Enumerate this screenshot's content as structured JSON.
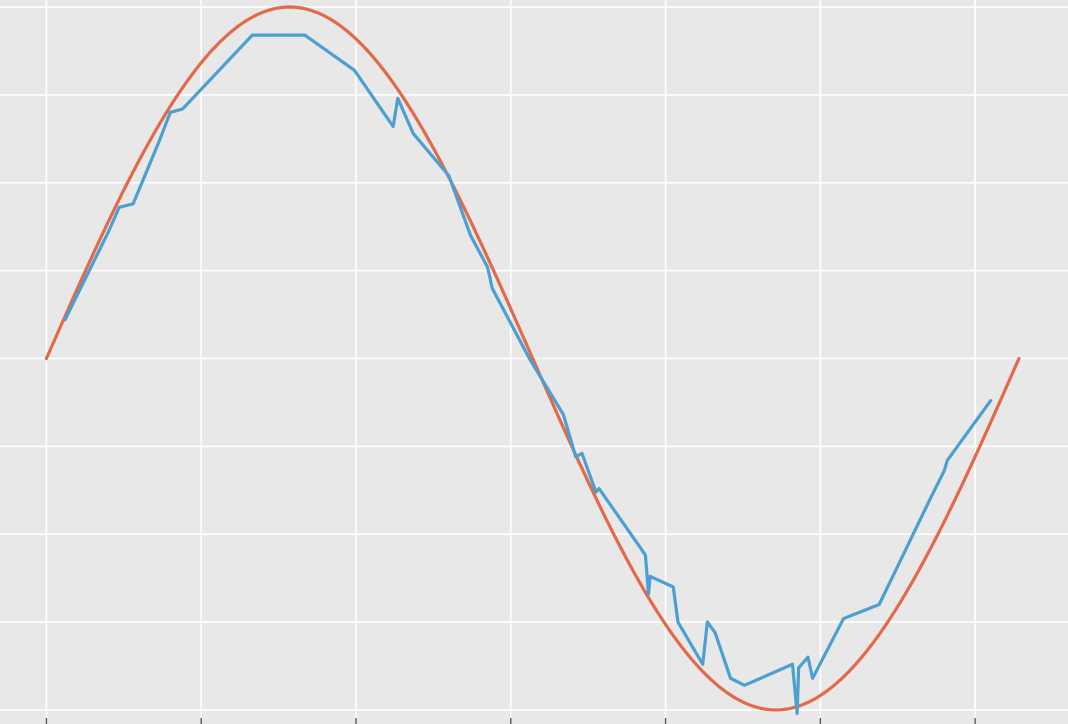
{
  "chart_data": {
    "type": "line",
    "title": "",
    "xlabel": "",
    "ylabel": "",
    "xlim": [
      -0.3,
      6.6
    ],
    "ylim": [
      -1.04,
      1.02
    ],
    "x_ticks": [
      0,
      1,
      2,
      3,
      4,
      5,
      6
    ],
    "y_ticks": [
      -1.0,
      -0.75,
      -0.5,
      -0.25,
      0.0,
      0.25,
      0.5,
      0.75,
      1.0
    ],
    "grid": true,
    "background": "#e8e8e8",
    "series": [
      {
        "kind": "function",
        "function": "sin",
        "color": "#e26a4a",
        "x_range": [
          0.0,
          6.2832
        ]
      },
      {
        "kind": "points",
        "color": "#4c9fd1",
        "points": [
          [
            0.12,
            0.11
          ],
          [
            0.4,
            0.36
          ],
          [
            0.47,
            0.43
          ],
          [
            0.56,
            0.44
          ],
          [
            0.73,
            0.62
          ],
          [
            0.8,
            0.7
          ],
          [
            0.88,
            0.71
          ],
          [
            1.33,
            0.92
          ],
          [
            1.67,
            0.92
          ],
          [
            1.99,
            0.82
          ],
          [
            2.24,
            0.66
          ],
          [
            2.27,
            0.74
          ],
          [
            2.37,
            0.64
          ],
          [
            2.6,
            0.52
          ],
          [
            2.74,
            0.35
          ],
          [
            2.85,
            0.26
          ],
          [
            2.88,
            0.2
          ],
          [
            3.12,
            0.0
          ],
          [
            3.34,
            -0.16
          ],
          [
            3.42,
            -0.28
          ],
          [
            3.46,
            -0.27
          ],
          [
            3.55,
            -0.38
          ],
          [
            3.57,
            -0.37
          ],
          [
            3.84,
            -0.54
          ],
          [
            3.87,
            -0.56
          ],
          [
            3.89,
            -0.67
          ],
          [
            3.9,
            -0.62
          ],
          [
            4.05,
            -0.65
          ],
          [
            4.08,
            -0.75
          ],
          [
            4.24,
            -0.87
          ],
          [
            4.27,
            -0.75
          ],
          [
            4.32,
            -0.78
          ],
          [
            4.42,
            -0.91
          ],
          [
            4.51,
            -0.93
          ],
          [
            4.82,
            -0.87
          ],
          [
            4.85,
            -1.01
          ],
          [
            4.86,
            -0.88
          ],
          [
            4.92,
            -0.85
          ],
          [
            4.95,
            -0.91
          ],
          [
            5.15,
            -0.74
          ],
          [
            5.38,
            -0.7
          ],
          [
            5.72,
            -0.39
          ],
          [
            5.8,
            -0.32
          ],
          [
            5.82,
            -0.29
          ],
          [
            6.1,
            -0.12
          ]
        ]
      }
    ]
  }
}
